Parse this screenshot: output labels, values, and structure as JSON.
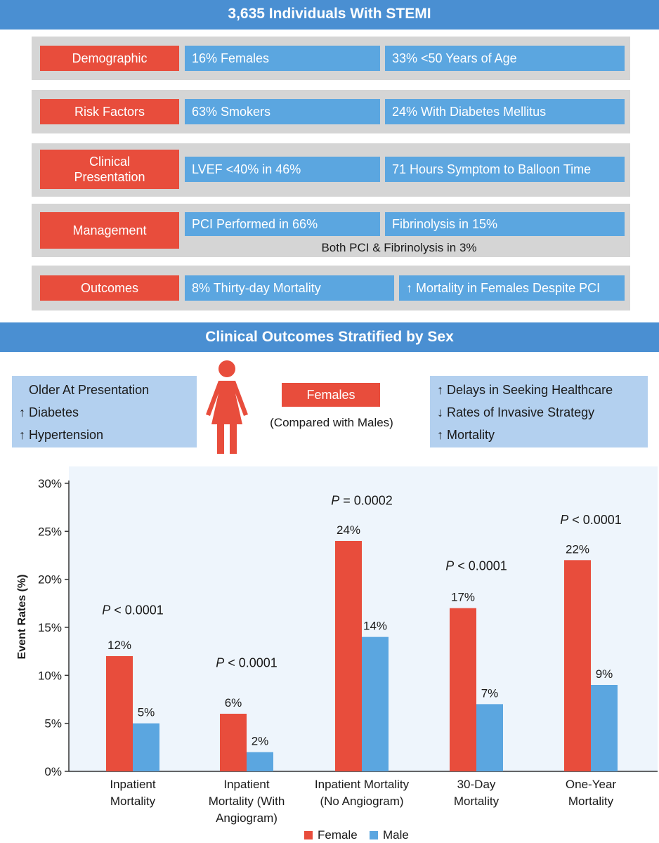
{
  "header": {
    "title": "3,635 Individuals With STEMI"
  },
  "rows": [
    {
      "label": "Demographic",
      "values": [
        "16% Females",
        "33% <50 Years of Age"
      ]
    },
    {
      "label": "Risk Factors",
      "values": [
        "63% Smokers",
        "24% With Diabetes Mellitus"
      ]
    },
    {
      "label": "Clinical Presentation",
      "values": [
        "LVEF <40% in 46%",
        "71 Hours Symptom to Balloon Time"
      ]
    },
    {
      "label": "Management",
      "values": [
        "PCI Performed in 66%",
        "Fibrinolysis in 15%"
      ],
      "note": "Both PCI & Fibrinolysis in 3%"
    },
    {
      "label": "Outcomes",
      "values": [
        "8% Thirty-day Mortality",
        "↑ Mortality in Females Despite PCI"
      ]
    }
  ],
  "section2": {
    "title": "Clinical Outcomes Stratified by Sex"
  },
  "females_panel": {
    "left_items": [
      "Older At Presentation",
      "↑ Diabetes",
      "↑ Hypertension"
    ],
    "center_label": "Females",
    "center_sub": "(Compared with Males)",
    "right_items": [
      "↑ Delays in Seeking Healthcare",
      "↓ Rates of Invasive Strategy",
      "↑ Mortality"
    ],
    "icon": "female-figure-icon"
  },
  "chart_data": {
    "type": "bar",
    "ylabel": "Event Rates (%)",
    "ylim": [
      0,
      30
    ],
    "yticks": [
      "0%",
      "5%",
      "10%",
      "15%",
      "20%",
      "25%",
      "30%"
    ],
    "categories": [
      [
        "Inpatient",
        "Mortality"
      ],
      [
        "Inpatient",
        "Mortality (With",
        "Angiogram)"
      ],
      [
        "Inpatient Mortality",
        "(No Angiogram)"
      ],
      [
        "30-Day",
        "Mortality"
      ],
      [
        "One-Year",
        "Mortality"
      ]
    ],
    "series": [
      {
        "name": "Female",
        "color": "#e84d3c",
        "values": [
          12,
          6,
          24,
          17,
          22
        ],
        "labels": [
          "12%",
          "6%",
          "24%",
          "17%",
          "22%"
        ]
      },
      {
        "name": "Male",
        "color": "#5ba6e0",
        "values": [
          5,
          2,
          14,
          7,
          9
        ],
        "labels": [
          "5%",
          "2%",
          "14%",
          "7%",
          "9%"
        ]
      }
    ],
    "pvalues": [
      {
        "p": "P",
        "rest": " < 0.0001"
      },
      {
        "p": "P",
        "rest": " < 0.0001"
      },
      {
        "p": "P",
        "rest": " = 0.0002"
      },
      {
        "p": "P",
        "rest": " < 0.0001"
      },
      {
        "p": "P",
        "rest": " < 0.0001"
      }
    ],
    "pvalue_levels": [
      16.8,
      11.3,
      28.2,
      21.4,
      26.2
    ],
    "legend": "bottom-center"
  }
}
